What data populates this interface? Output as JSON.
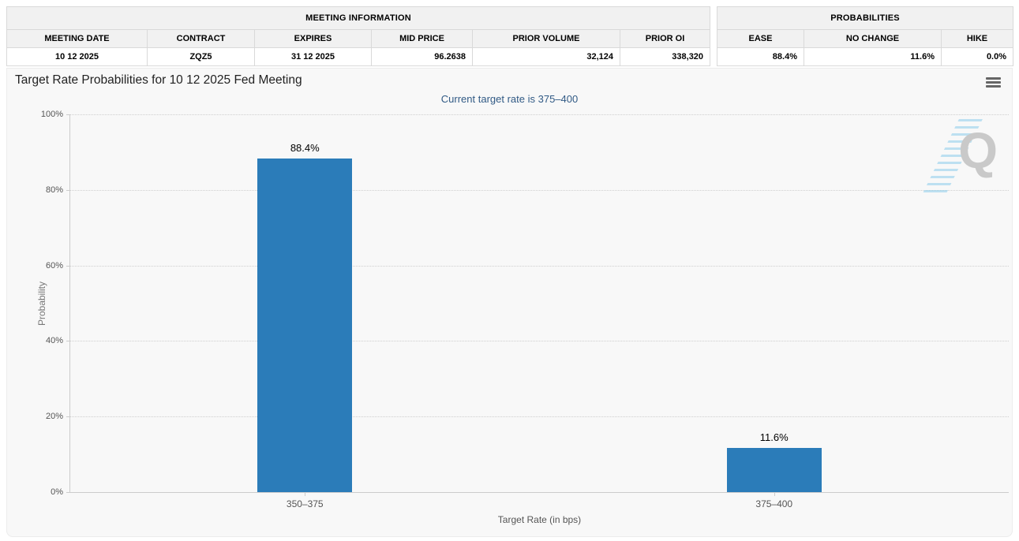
{
  "meeting_information": {
    "title": "MEETING INFORMATION",
    "columns": [
      "MEETING DATE",
      "CONTRACT",
      "EXPIRES",
      "MID PRICE",
      "PRIOR VOLUME",
      "PRIOR OI"
    ],
    "values": [
      "10 12 2025",
      "ZQZ5",
      "31 12 2025",
      "96.2638",
      "32,124",
      "338,320"
    ]
  },
  "probabilities": {
    "title": "PROBABILITIES",
    "columns": [
      "EASE",
      "NO CHANGE",
      "HIKE"
    ],
    "values": [
      "88.4%",
      "11.6%",
      "0.0%"
    ]
  },
  "chart": {
    "title": "Target Rate Probabilities for 10 12 2025 Fed Meeting",
    "subtitle": "Current target rate is 375–400",
    "menu_icon": "hamburger-icon",
    "watermark_letter": "Q"
  },
  "chart_data": {
    "type": "bar",
    "categories": [
      "350–375",
      "375–400"
    ],
    "values": [
      88.4,
      11.6
    ],
    "data_labels": [
      "88.4%",
      "11.6%"
    ],
    "title": "Target Rate Probabilities for 10 12 2025 Fed Meeting",
    "subtitle": "Current target rate is 375–400",
    "xlabel": "Target Rate (in bps)",
    "ylabel": "Probability",
    "ylim": [
      0,
      100
    ],
    "yticks": [
      "0%",
      "20%",
      "40%",
      "60%",
      "80%",
      "100%"
    ],
    "grid": "horizontal-dotted",
    "legend": "none",
    "bar_color": "#2b7cb9"
  },
  "colors": {
    "bar": "#2b7cb9",
    "subtitle_text": "#315a85",
    "panel_background": "#f8f8f8",
    "table_header_background": "#f1f1f1",
    "grid_line": "#cccccc",
    "watermark_gray": "#c9c9c9",
    "watermark_blue": "#8ccdeb"
  }
}
